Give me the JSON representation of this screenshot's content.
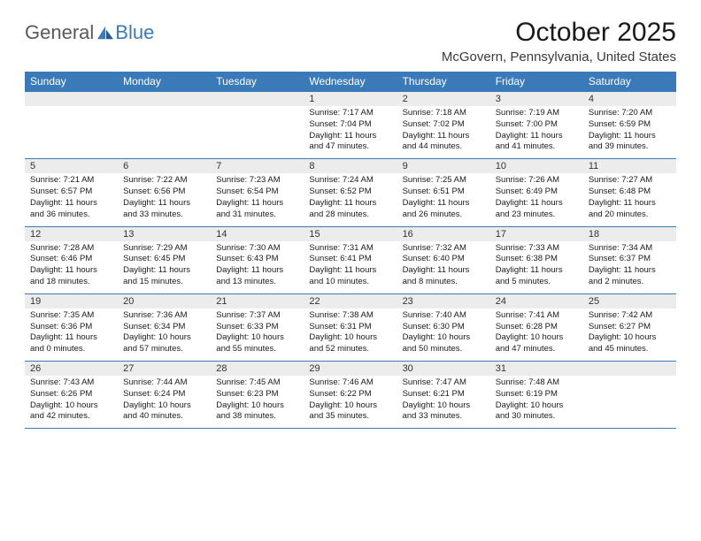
{
  "logo": {
    "word1": "General",
    "word2": "Blue"
  },
  "title": "October 2025",
  "location": "McGovern, Pennsylvania, United States",
  "colors": {
    "header_bg": "#3a7ab8",
    "header_text": "#ffffff",
    "daynum_bg": "#ececec",
    "row_border": "#3a7ab8",
    "text": "#1a1a1a",
    "logo_gray": "#5a5a5a",
    "logo_blue": "#3a7ab8"
  },
  "font": {
    "title_size_pt": 22,
    "location_size_pt": 11,
    "header_size_pt": 9,
    "daynum_size_pt": 8,
    "detail_size_pt": 7
  },
  "weekdays": [
    "Sunday",
    "Monday",
    "Tuesday",
    "Wednesday",
    "Thursday",
    "Friday",
    "Saturday"
  ],
  "weeks": [
    [
      null,
      null,
      null,
      {
        "n": "1",
        "sr": "7:17 AM",
        "ss": "7:04 PM",
        "d1": "11 hours",
        "d2": "47 minutes"
      },
      {
        "n": "2",
        "sr": "7:18 AM",
        "ss": "7:02 PM",
        "d1": "11 hours",
        "d2": "44 minutes"
      },
      {
        "n": "3",
        "sr": "7:19 AM",
        "ss": "7:00 PM",
        "d1": "11 hours",
        "d2": "41 minutes"
      },
      {
        "n": "4",
        "sr": "7:20 AM",
        "ss": "6:59 PM",
        "d1": "11 hours",
        "d2": "39 minutes"
      }
    ],
    [
      {
        "n": "5",
        "sr": "7:21 AM",
        "ss": "6:57 PM",
        "d1": "11 hours",
        "d2": "36 minutes"
      },
      {
        "n": "6",
        "sr": "7:22 AM",
        "ss": "6:56 PM",
        "d1": "11 hours",
        "d2": "33 minutes"
      },
      {
        "n": "7",
        "sr": "7:23 AM",
        "ss": "6:54 PM",
        "d1": "11 hours",
        "d2": "31 minutes"
      },
      {
        "n": "8",
        "sr": "7:24 AM",
        "ss": "6:52 PM",
        "d1": "11 hours",
        "d2": "28 minutes"
      },
      {
        "n": "9",
        "sr": "7:25 AM",
        "ss": "6:51 PM",
        "d1": "11 hours",
        "d2": "26 minutes"
      },
      {
        "n": "10",
        "sr": "7:26 AM",
        "ss": "6:49 PM",
        "d1": "11 hours",
        "d2": "23 minutes"
      },
      {
        "n": "11",
        "sr": "7:27 AM",
        "ss": "6:48 PM",
        "d1": "11 hours",
        "d2": "20 minutes"
      }
    ],
    [
      {
        "n": "12",
        "sr": "7:28 AM",
        "ss": "6:46 PM",
        "d1": "11 hours",
        "d2": "18 minutes"
      },
      {
        "n": "13",
        "sr": "7:29 AM",
        "ss": "6:45 PM",
        "d1": "11 hours",
        "d2": "15 minutes"
      },
      {
        "n": "14",
        "sr": "7:30 AM",
        "ss": "6:43 PM",
        "d1": "11 hours",
        "d2": "13 minutes"
      },
      {
        "n": "15",
        "sr": "7:31 AM",
        "ss": "6:41 PM",
        "d1": "11 hours",
        "d2": "10 minutes"
      },
      {
        "n": "16",
        "sr": "7:32 AM",
        "ss": "6:40 PM",
        "d1": "11 hours",
        "d2": "8 minutes"
      },
      {
        "n": "17",
        "sr": "7:33 AM",
        "ss": "6:38 PM",
        "d1": "11 hours",
        "d2": "5 minutes"
      },
      {
        "n": "18",
        "sr": "7:34 AM",
        "ss": "6:37 PM",
        "d1": "11 hours",
        "d2": "2 minutes"
      }
    ],
    [
      {
        "n": "19",
        "sr": "7:35 AM",
        "ss": "6:36 PM",
        "d1": "11 hours",
        "d2": "0 minutes"
      },
      {
        "n": "20",
        "sr": "7:36 AM",
        "ss": "6:34 PM",
        "d1": "10 hours",
        "d2": "57 minutes"
      },
      {
        "n": "21",
        "sr": "7:37 AM",
        "ss": "6:33 PM",
        "d1": "10 hours",
        "d2": "55 minutes"
      },
      {
        "n": "22",
        "sr": "7:38 AM",
        "ss": "6:31 PM",
        "d1": "10 hours",
        "d2": "52 minutes"
      },
      {
        "n": "23",
        "sr": "7:40 AM",
        "ss": "6:30 PM",
        "d1": "10 hours",
        "d2": "50 minutes"
      },
      {
        "n": "24",
        "sr": "7:41 AM",
        "ss": "6:28 PM",
        "d1": "10 hours",
        "d2": "47 minutes"
      },
      {
        "n": "25",
        "sr": "7:42 AM",
        "ss": "6:27 PM",
        "d1": "10 hours",
        "d2": "45 minutes"
      }
    ],
    [
      {
        "n": "26",
        "sr": "7:43 AM",
        "ss": "6:26 PM",
        "d1": "10 hours",
        "d2": "42 minutes"
      },
      {
        "n": "27",
        "sr": "7:44 AM",
        "ss": "6:24 PM",
        "d1": "10 hours",
        "d2": "40 minutes"
      },
      {
        "n": "28",
        "sr": "7:45 AM",
        "ss": "6:23 PM",
        "d1": "10 hours",
        "d2": "38 minutes"
      },
      {
        "n": "29",
        "sr": "7:46 AM",
        "ss": "6:22 PM",
        "d1": "10 hours",
        "d2": "35 minutes"
      },
      {
        "n": "30",
        "sr": "7:47 AM",
        "ss": "6:21 PM",
        "d1": "10 hours",
        "d2": "33 minutes"
      },
      {
        "n": "31",
        "sr": "7:48 AM",
        "ss": "6:19 PM",
        "d1": "10 hours",
        "d2": "30 minutes"
      },
      null
    ]
  ],
  "labels": {
    "sunrise": "Sunrise:",
    "sunset": "Sunset:",
    "daylight": "Daylight:",
    "and": "and"
  }
}
